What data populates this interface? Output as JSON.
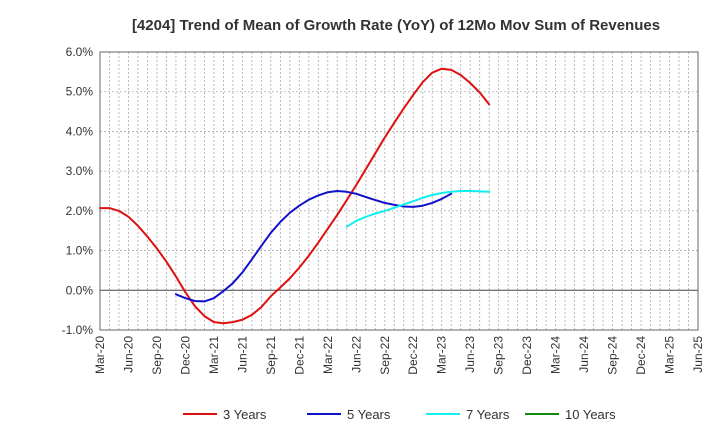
{
  "chart_data": {
    "type": "line",
    "title": "[4204]  Trend of Mean of Growth Rate (YoY) of 12Mo Mov Sum of Revenues",
    "xlabel": "",
    "ylabel": "",
    "ylim": [
      -1.0,
      6.0
    ],
    "y_ticks": [
      -1.0,
      0.0,
      1.0,
      2.0,
      3.0,
      4.0,
      5.0,
      6.0
    ],
    "y_tick_labels": [
      "-1.0%",
      "0.0%",
      "1.0%",
      "2.0%",
      "3.0%",
      "4.0%",
      "5.0%",
      "6.0%"
    ],
    "x_tick_labels": [
      "Mar-20",
      "Jun-20",
      "Sep-20",
      "Dec-20",
      "Mar-21",
      "Jun-21",
      "Sep-21",
      "Dec-21",
      "Mar-22",
      "Jun-22",
      "Sep-22",
      "Dec-22",
      "Mar-23",
      "Jun-23",
      "Sep-23",
      "Dec-23",
      "Mar-24",
      "Jun-24",
      "Sep-24",
      "Dec-24",
      "Mar-25",
      "Jun-25"
    ],
    "grid": true,
    "legend_position": "bottom",
    "series": [
      {
        "name": "3 Years",
        "color": "#dd1111",
        "start_index": 0,
        "values": [
          2.07,
          2.07,
          2.0,
          1.85,
          1.62,
          1.35,
          1.05,
          0.72,
          0.35,
          -0.05,
          -0.4,
          -0.65,
          -0.8,
          -0.83,
          -0.8,
          -0.74,
          -0.62,
          -0.42,
          -0.15,
          0.07,
          0.3,
          0.57,
          0.87,
          1.2,
          1.55,
          1.9,
          2.27,
          2.65,
          3.05,
          3.45,
          3.85,
          4.22,
          4.58,
          4.92,
          5.24,
          5.48,
          5.58,
          5.55,
          5.42,
          5.22,
          4.98,
          4.68
        ]
      },
      {
        "name": "5 Years",
        "color": "#1111cc",
        "start_index": 8,
        "values": [
          -0.1,
          -0.2,
          -0.27,
          -0.28,
          -0.2,
          -0.02,
          0.18,
          0.45,
          0.78,
          1.12,
          1.45,
          1.72,
          1.95,
          2.13,
          2.28,
          2.39,
          2.47,
          2.5,
          2.48,
          2.43,
          2.35,
          2.27,
          2.2,
          2.15,
          2.11,
          2.1,
          2.13,
          2.2,
          2.3,
          2.43
        ]
      },
      {
        "name": "7 Years",
        "color": "#11eeee",
        "start_index": 26,
        "values": [
          1.6,
          1.75,
          1.85,
          1.93,
          2.0,
          2.08,
          2.16,
          2.24,
          2.33,
          2.4,
          2.45,
          2.48,
          2.5,
          2.5,
          2.49,
          2.48
        ]
      },
      {
        "name": "10 Years",
        "color": "#118811",
        "start_index": 0,
        "values": []
      }
    ]
  }
}
